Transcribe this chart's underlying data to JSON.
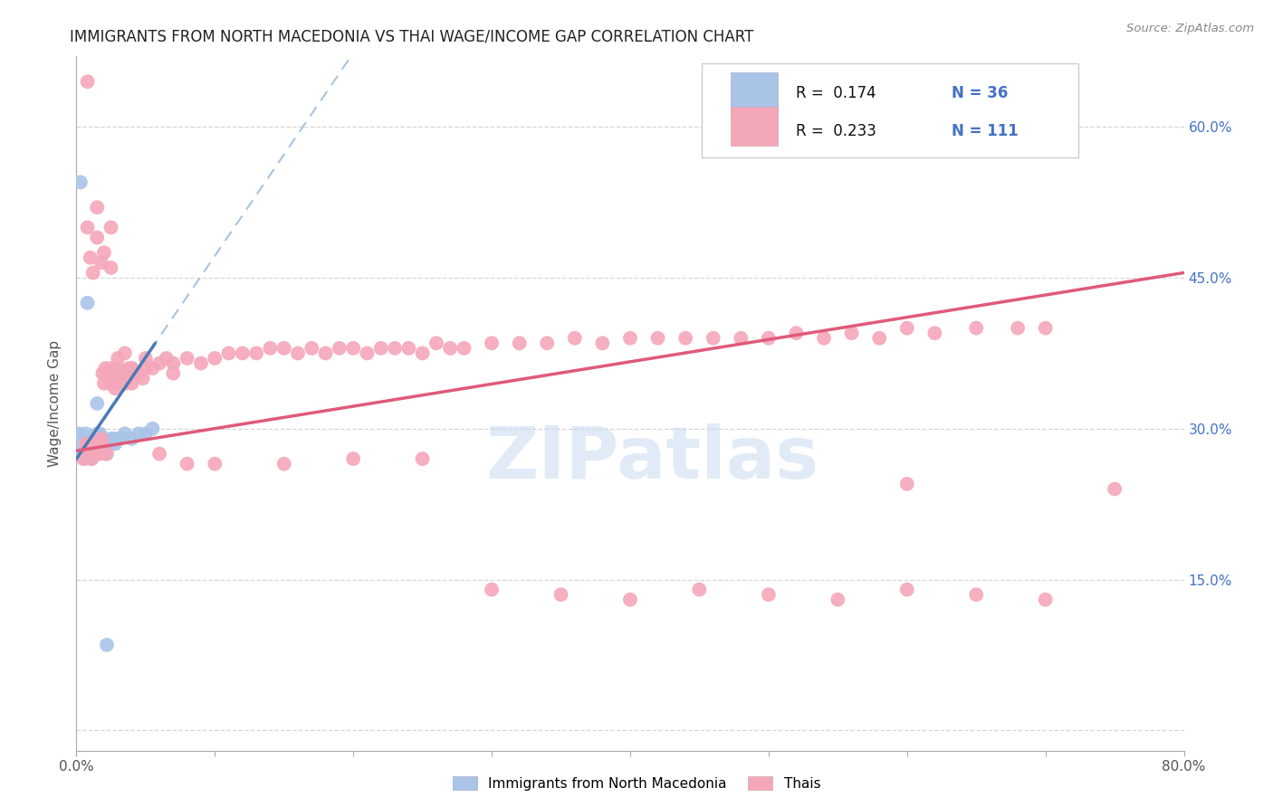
{
  "title": "IMMIGRANTS FROM NORTH MACEDONIA VS THAI WAGE/INCOME GAP CORRELATION CHART",
  "source": "Source: ZipAtlas.com",
  "ylabel": "Wage/Income Gap",
  "legend_label_blue": "Immigrants from North Macedonia",
  "legend_label_pink": "Thais",
  "r_blue": "0.174",
  "n_blue": "36",
  "r_pink": "0.233",
  "n_pink": "111",
  "watermark": "ZIPatlas",
  "xlim": [
    0.0,
    0.8
  ],
  "ylim": [
    -0.02,
    0.67
  ],
  "bg_color": "#ffffff",
  "blue_color": "#aac4e8",
  "pink_color": "#f4a7b9",
  "blue_line_color": "#4a7ab5",
  "pink_line_color": "#e05a7a",
  "blue_dash_color": "#8ab0d8",
  "grid_color": "#cccccc",
  "blue_x": [
    0.002,
    0.004,
    0.005,
    0.006,
    0.007,
    0.008,
    0.009,
    0.01,
    0.011,
    0.012,
    0.013,
    0.014,
    0.015,
    0.016,
    0.017,
    0.018,
    0.019,
    0.02,
    0.021,
    0.022,
    0.023,
    0.024,
    0.025,
    0.027,
    0.028,
    0.03,
    0.032,
    0.035,
    0.04,
    0.045,
    0.05,
    0.055,
    0.003,
    0.008,
    0.015,
    0.022
  ],
  "blue_y": [
    0.295,
    0.275,
    0.285,
    0.27,
    0.295,
    0.29,
    0.285,
    0.29,
    0.27,
    0.285,
    0.28,
    0.285,
    0.295,
    0.285,
    0.295,
    0.285,
    0.29,
    0.28,
    0.275,
    0.285,
    0.285,
    0.285,
    0.29,
    0.29,
    0.285,
    0.29,
    0.29,
    0.295,
    0.29,
    0.295,
    0.295,
    0.3,
    0.545,
    0.425,
    0.325,
    0.085
  ],
  "pink_x": [
    0.005,
    0.007,
    0.008,
    0.009,
    0.01,
    0.011,
    0.012,
    0.013,
    0.014,
    0.015,
    0.016,
    0.017,
    0.018,
    0.019,
    0.02,
    0.021,
    0.022,
    0.023,
    0.024,
    0.025,
    0.026,
    0.027,
    0.028,
    0.029,
    0.03,
    0.032,
    0.033,
    0.034,
    0.035,
    0.038,
    0.04,
    0.042,
    0.045,
    0.048,
    0.05,
    0.055,
    0.06,
    0.065,
    0.07,
    0.08,
    0.09,
    0.1,
    0.11,
    0.12,
    0.13,
    0.14,
    0.15,
    0.16,
    0.17,
    0.18,
    0.19,
    0.2,
    0.21,
    0.22,
    0.23,
    0.24,
    0.25,
    0.26,
    0.27,
    0.28,
    0.3,
    0.32,
    0.34,
    0.36,
    0.38,
    0.4,
    0.42,
    0.44,
    0.46,
    0.48,
    0.5,
    0.52,
    0.54,
    0.56,
    0.58,
    0.6,
    0.62,
    0.65,
    0.68,
    0.7,
    0.008,
    0.01,
    0.015,
    0.018,
    0.02,
    0.025,
    0.03,
    0.035,
    0.04,
    0.05,
    0.06,
    0.08,
    0.1,
    0.15,
    0.2,
    0.25,
    0.3,
    0.35,
    0.4,
    0.45,
    0.5,
    0.55,
    0.6,
    0.65,
    0.7,
    0.75,
    0.012,
    0.018,
    0.025,
    0.03,
    0.04,
    0.07,
    0.6
  ],
  "pink_y": [
    0.27,
    0.285,
    0.645,
    0.28,
    0.285,
    0.27,
    0.275,
    0.28,
    0.275,
    0.52,
    0.285,
    0.275,
    0.29,
    0.355,
    0.345,
    0.36,
    0.275,
    0.35,
    0.345,
    0.36,
    0.35,
    0.345,
    0.34,
    0.355,
    0.36,
    0.35,
    0.355,
    0.355,
    0.345,
    0.36,
    0.36,
    0.355,
    0.355,
    0.35,
    0.36,
    0.36,
    0.365,
    0.37,
    0.365,
    0.37,
    0.365,
    0.37,
    0.375,
    0.375,
    0.375,
    0.38,
    0.38,
    0.375,
    0.38,
    0.375,
    0.38,
    0.38,
    0.375,
    0.38,
    0.38,
    0.38,
    0.375,
    0.385,
    0.38,
    0.38,
    0.385,
    0.385,
    0.385,
    0.39,
    0.385,
    0.39,
    0.39,
    0.39,
    0.39,
    0.39,
    0.39,
    0.395,
    0.39,
    0.395,
    0.39,
    0.4,
    0.395,
    0.4,
    0.4,
    0.4,
    0.5,
    0.47,
    0.49,
    0.285,
    0.475,
    0.5,
    0.37,
    0.375,
    0.36,
    0.37,
    0.275,
    0.265,
    0.265,
    0.265,
    0.27,
    0.27,
    0.14,
    0.135,
    0.13,
    0.14,
    0.135,
    0.13,
    0.14,
    0.135,
    0.13,
    0.24,
    0.455,
    0.465,
    0.46,
    0.35,
    0.345,
    0.355,
    0.245
  ]
}
